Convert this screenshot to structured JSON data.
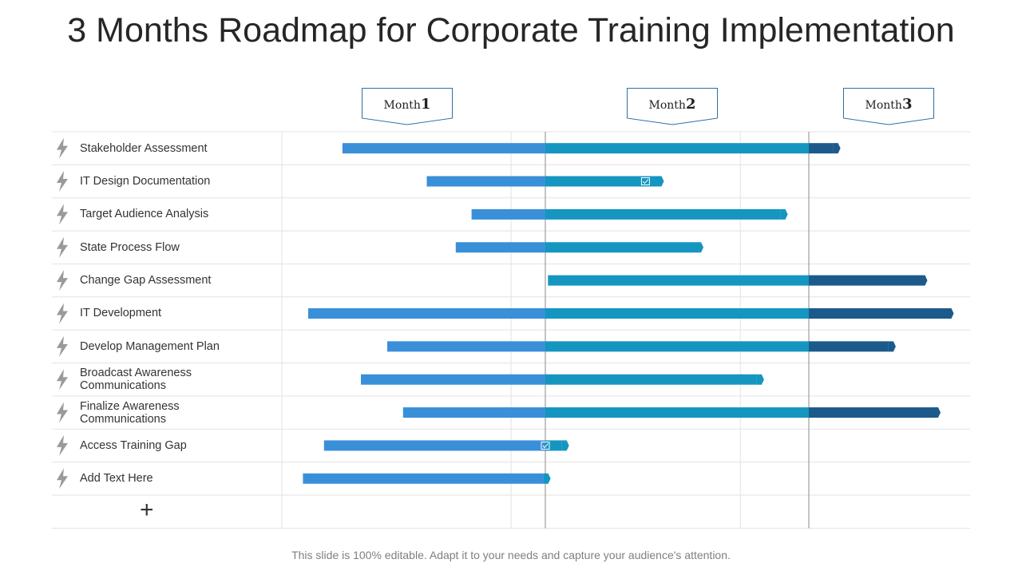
{
  "title": "3 Months Roadmap for Corporate Training Implementation",
  "footer": "This slide is 100% editable. Adapt it to your needs and capture your audience's attention.",
  "add_row_symbol": "+",
  "months": [
    {
      "word": "Month",
      "num": "1"
    },
    {
      "word": "Month",
      "num": "2"
    },
    {
      "word": "Month",
      "num": "3"
    }
  ],
  "colors": {
    "phase1": "#3a8fd9",
    "phase2": "#1496c0",
    "phase3": "#1c5a8c",
    "icon": "#9a9a9a",
    "grid": "#e3e3e3",
    "divider": "#8a8a8a"
  },
  "icons": {
    "task": "lightning-icon",
    "milestone": "checkbox-icon",
    "add": "plus-icon"
  },
  "chart_data": {
    "type": "gantt",
    "title": "3 Months Roadmap for Corporate Training Implementation",
    "x_unit": "months",
    "xlim": [
      0,
      3
    ],
    "tasks": [
      {
        "label": "Stakeholder Assessment",
        "start": 0.23,
        "end": 2.12
      },
      {
        "label": "IT Design Documentation",
        "start": 0.55,
        "end": 1.45,
        "milestone": 1.38
      },
      {
        "label": "Target Audience Analysis",
        "start": 0.72,
        "end": 1.92
      },
      {
        "label": "State Process Flow",
        "start": 0.66,
        "end": 1.6
      },
      {
        "label": "Change Gap Assessment",
        "start": 1.01,
        "end": 2.45
      },
      {
        "label": "IT Development",
        "start": 0.1,
        "end": 2.55
      },
      {
        "label": "Develop Management Plan",
        "start": 0.4,
        "end": 2.33
      },
      {
        "label": "Broadcast Awareness Communications",
        "start": 0.3,
        "end": 1.83
      },
      {
        "label": "Finalize Awareness Communications",
        "start": 0.46,
        "end": 2.5
      },
      {
        "label": "Access Training Gap",
        "start": 0.16,
        "end": 1.09,
        "milestone": 1.0
      },
      {
        "label": "Add Text Here",
        "start": 0.08,
        "end": 1.02
      }
    ]
  }
}
